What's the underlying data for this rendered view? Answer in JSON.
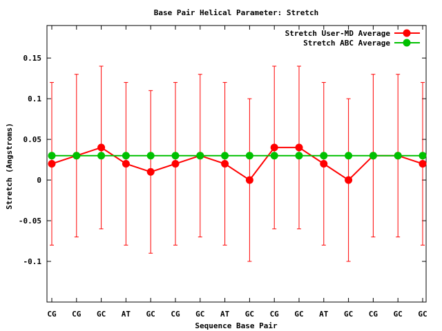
{
  "colors": {
    "user_md": "#ff0000",
    "abc": "#00c000",
    "axis": "#000000"
  },
  "chart_data": {
    "type": "line",
    "title": "Base Pair Helical Parameter: Stretch",
    "xlabel": "Sequence Base Pair",
    "ylabel": "Stretch (Angstroms)",
    "ylim": [
      -0.15,
      0.19
    ],
    "yticks": [
      -0.1,
      -0.05,
      0,
      0.05,
      0.1,
      0.15
    ],
    "ytick_labels": [
      "-0.1",
      "-0.05",
      "0",
      "0.05",
      "0.1",
      "0.15"
    ],
    "categories": [
      "CG",
      "CG",
      "GC",
      "AT",
      "GC",
      "CG",
      "GC",
      "AT",
      "GC",
      "CG",
      "GC",
      "AT",
      "GC",
      "CG",
      "GC",
      "GC"
    ],
    "legend_position": "top-right",
    "grid": false,
    "series": [
      {
        "name": "Stretch User-MD Average",
        "color": "#ff0000",
        "values": [
          0.02,
          0.03,
          0.04,
          0.02,
          0.01,
          0.02,
          0.03,
          0.02,
          0.0,
          0.04,
          0.04,
          0.02,
          0.0,
          0.03,
          0.03,
          0.02
        ],
        "err_low": [
          -0.08,
          -0.07,
          -0.06,
          -0.08,
          -0.09,
          -0.08,
          -0.07,
          -0.08,
          -0.1,
          -0.06,
          -0.06,
          -0.08,
          -0.1,
          -0.07,
          -0.07,
          -0.08
        ],
        "err_high": [
          0.12,
          0.13,
          0.14,
          0.12,
          0.11,
          0.12,
          0.13,
          0.12,
          0.1,
          0.14,
          0.14,
          0.12,
          0.1,
          0.13,
          0.13,
          0.12
        ]
      },
      {
        "name": "Stretch ABC Average",
        "color": "#00c000",
        "values": [
          0.03,
          0.03,
          0.03,
          0.03,
          0.03,
          0.03,
          0.03,
          0.03,
          0.03,
          0.03,
          0.03,
          0.03,
          0.03,
          0.03,
          0.03,
          0.03
        ]
      }
    ]
  }
}
